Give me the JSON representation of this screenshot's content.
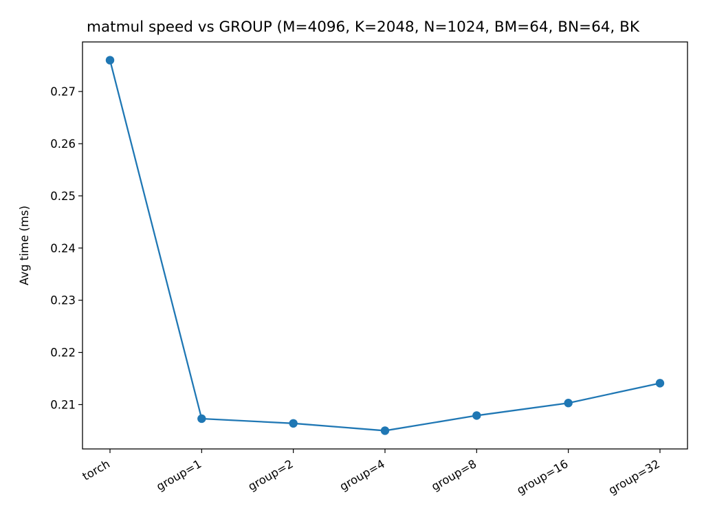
{
  "chart_data": {
    "type": "line",
    "title": "matmul speed vs GROUP (M=4096, K=2048, N=1024, BM=64, BN=64, BK",
    "xlabel": "",
    "ylabel": "Avg time (ms)",
    "categories": [
      "torch",
      "group=1",
      "group=2",
      "group=4",
      "group=8",
      "group=16",
      "group=32"
    ],
    "series": [
      {
        "values": [
          0.276,
          0.2073,
          0.2064,
          0.205,
          0.2079,
          0.2103,
          0.2141
        ],
        "color": "#1f77b4",
        "marker": "circle"
      }
    ],
    "ylim": [
      0.2015,
      0.2795
    ],
    "yticks": [
      0.21,
      0.22,
      0.23,
      0.24,
      0.25,
      0.26,
      0.27
    ],
    "ytick_labels": [
      "0.21",
      "0.22",
      "0.23",
      "0.24",
      "0.25",
      "0.26",
      "0.27"
    ],
    "xtick_rotation": "30 degrees, right-aligned",
    "grid": false,
    "legend": "none"
  }
}
